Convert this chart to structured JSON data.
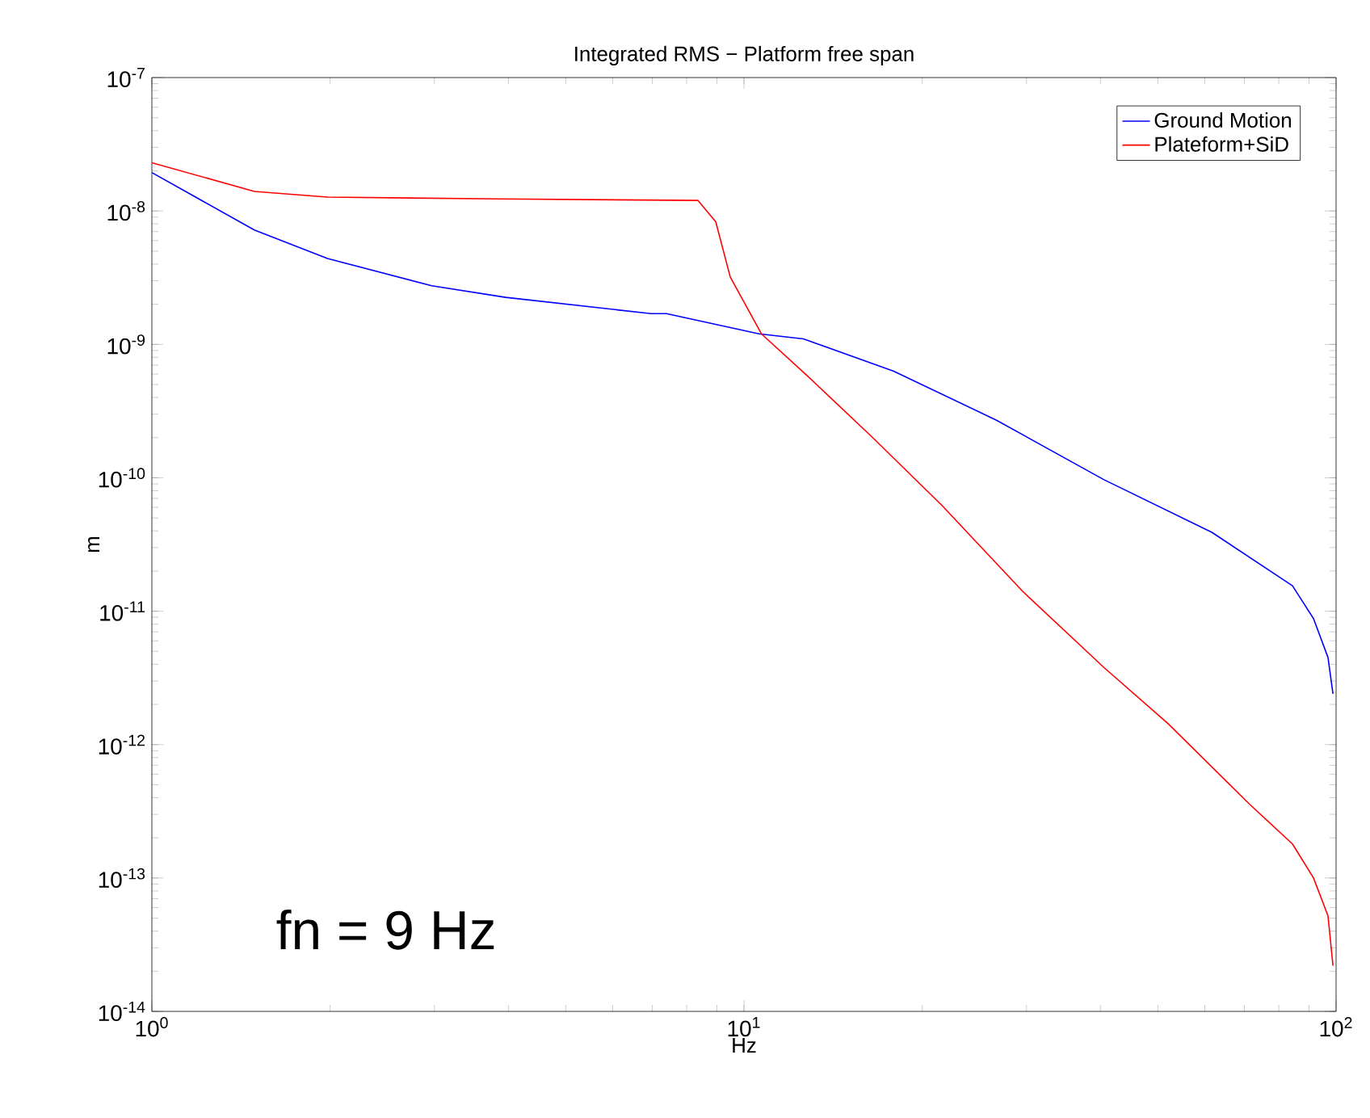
{
  "chart_data": {
    "type": "line",
    "title": "Integrated RMS − Platform free span",
    "xlabel": "Hz",
    "ylabel": "m",
    "log": "xy",
    "legend": "top right",
    "grid": false,
    "xlim": [
      1,
      100
    ],
    "ylim": [
      1e-14,
      1e-07
    ],
    "xticks": [
      {
        "value": 1,
        "label": "10$^{0}$"
      },
      {
        "value": 10,
        "label": "10$^{1}$"
      },
      {
        "value": 100,
        "label": "10$^{2}$"
      }
    ],
    "yticks": [
      {
        "value": 1e-14,
        "label": "10$^{-14}$"
      },
      {
        "value": 1e-13,
        "label": "10$^{-13}$"
      },
      {
        "value": 1e-12,
        "label": "10$^{-12}$"
      },
      {
        "value": 1e-11,
        "label": "10$^{-11}$"
      },
      {
        "value": 1e-10,
        "label": "10$^{-10}$"
      },
      {
        "value": 1e-09,
        "label": "10$^{-9}$"
      },
      {
        "value": 1e-08,
        "label": "10$^{-8}$"
      },
      {
        "value": 1e-07,
        "label": "10$^{-7}$"
      }
    ],
    "series": [
      {
        "name": "Ground Motion",
        "color": "#0000ff",
        "x": [
          1,
          1.49,
          1.98,
          2.97,
          3.96,
          6.97,
          7.4,
          10.6,
          12.6,
          17.9,
          26.7,
          40.5,
          61.7,
          84.4,
          91.6,
          96.9,
          98.8
        ],
        "values": [
          1.94e-08,
          7.2e-09,
          4.4e-09,
          2.75e-09,
          2.25e-09,
          1.7e-09,
          1.7e-09,
          1.2e-09,
          1.1e-09,
          6.3e-10,
          2.7e-10,
          9.7e-11,
          3.9e-11,
          1.55e-11,
          8.8e-12,
          4.5e-12,
          2.4e-12
        ]
      },
      {
        "name": "Plateform+SiD",
        "color": "#ff0000",
        "x": [
          1,
          1.49,
          1.98,
          3.88,
          8.36,
          8.96,
          9.48,
          10.7,
          12.8,
          16.5,
          21.6,
          29.6,
          40.5,
          52,
          71.3,
          84.4,
          91.6,
          96.9,
          98.8
        ],
        "values": [
          2.3e-08,
          1.4e-08,
          1.27e-08,
          1.23e-08,
          1.2e-08,
          8.3e-09,
          3.2e-09,
          1.2e-09,
          5.8e-10,
          2e-10,
          6.2e-11,
          1.4e-11,
          3.8e-12,
          1.44e-12,
          3.6e-13,
          1.8e-13,
          1e-13,
          5.2e-14,
          2.2e-14
        ]
      }
    ],
    "annotations": [
      "fn = 9 Hz"
    ]
  }
}
